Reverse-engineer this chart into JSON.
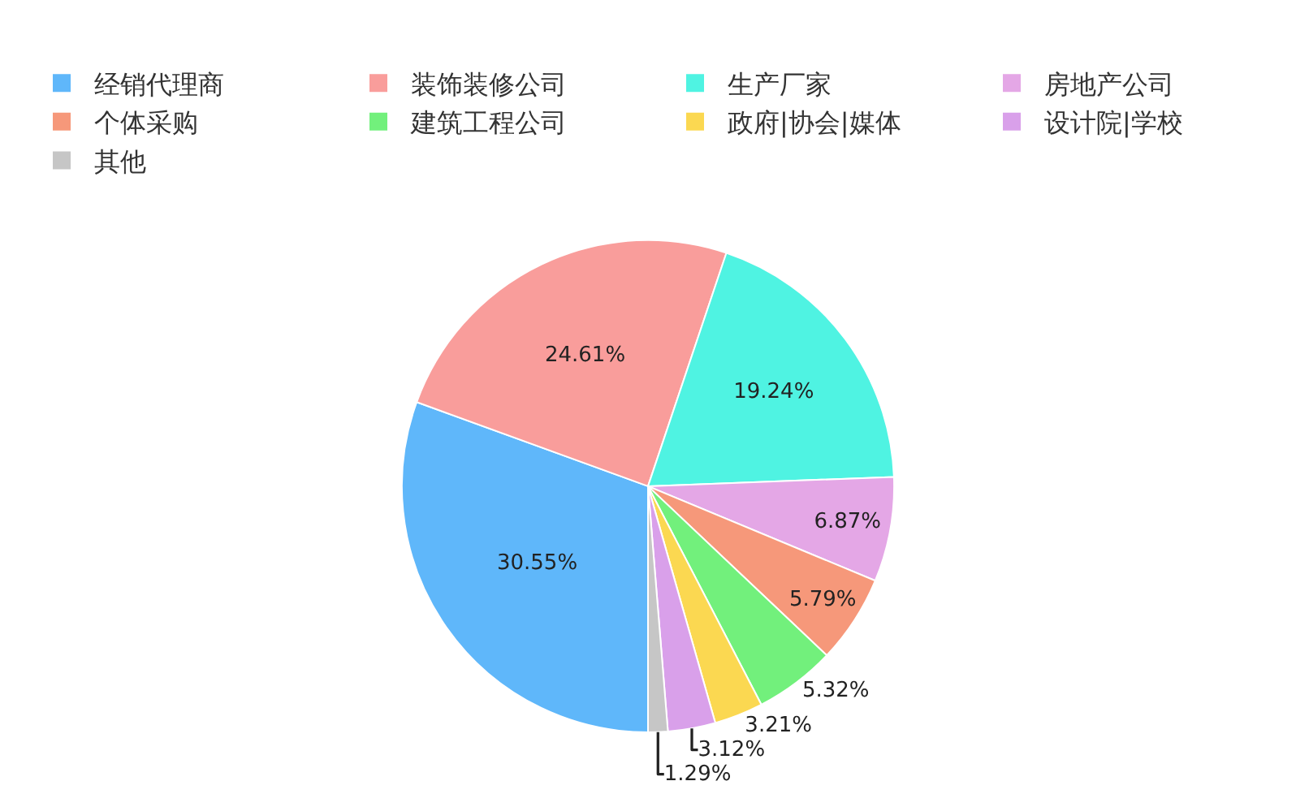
{
  "chart_data": {
    "type": "pie",
    "categories": [
      "经销代理商",
      "装饰装修公司",
      "生产厂家",
      "房地产公司",
      "个体采购",
      "建筑工程公司",
      "政府|协会|媒体",
      "设计院|学校",
      "其他"
    ],
    "values": [
      30.55,
      24.61,
      19.24,
      6.87,
      5.79,
      5.32,
      3.21,
      3.12,
      1.29
    ],
    "colors": [
      "#5fb7fa",
      "#f99d9b",
      "#4ff3e2",
      "#e4a7e6",
      "#f6987a",
      "#72f07c",
      "#fbd851",
      "#d9a0ea",
      "#c6c6c6"
    ],
    "value_labels": [
      "30.55%",
      "24.61%",
      "19.24%",
      "6.87%",
      "5.79%",
      "5.32%",
      "3.21%",
      "3.12%",
      "1.29%"
    ],
    "legend": "top"
  }
}
